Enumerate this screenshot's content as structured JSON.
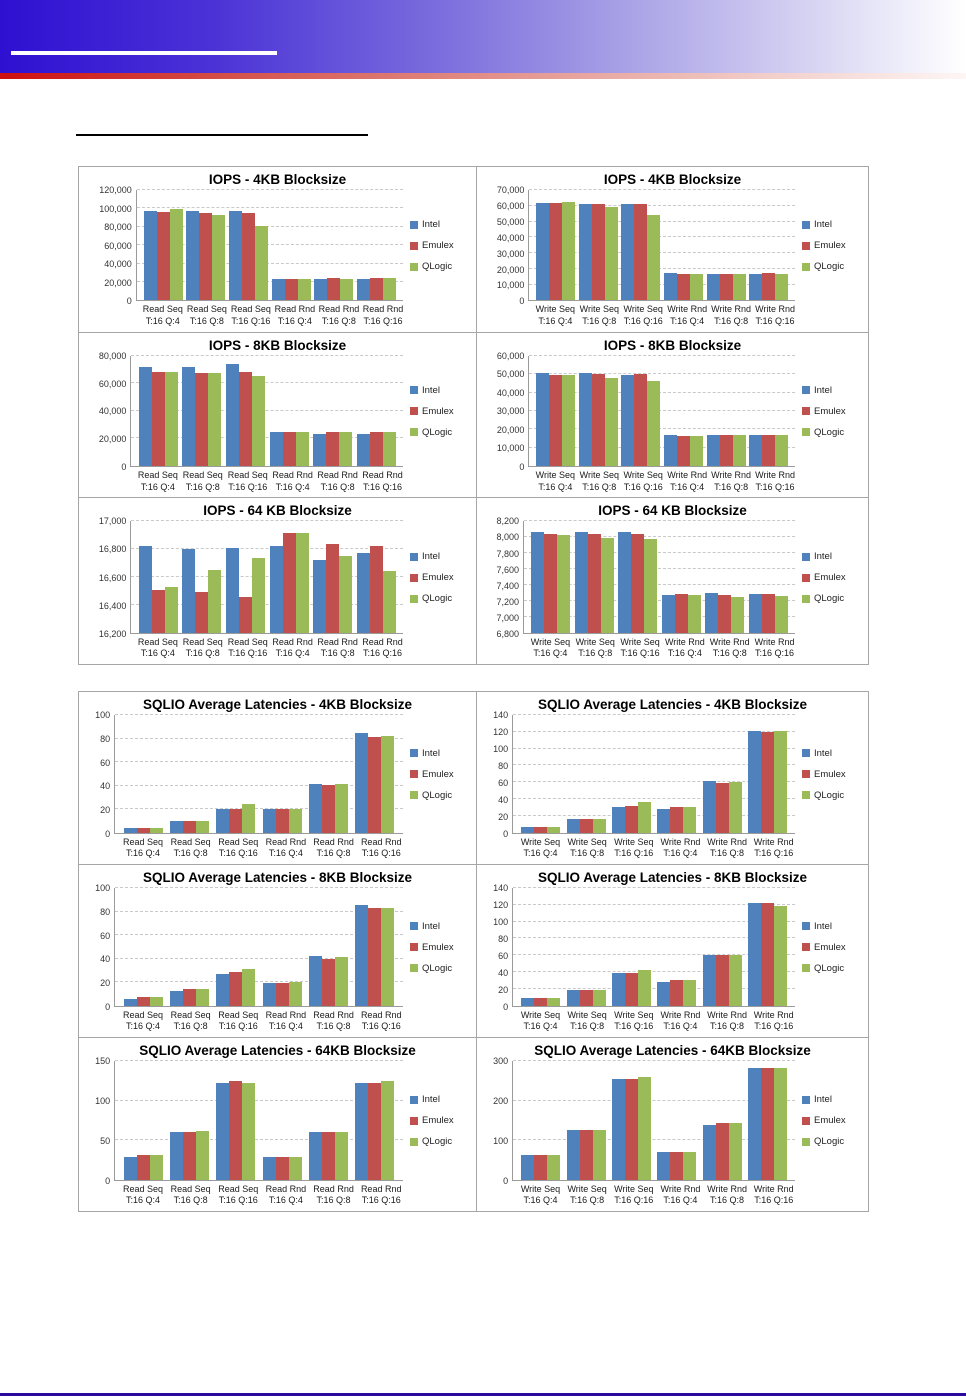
{
  "page": {
    "header": {
      "blue_band_color_left": "#2e10d2",
      "blue_band_color_right": "#ffffff",
      "red_band_color_left": "#cd0f0f",
      "red_band_color_right": "#fdf6f5"
    },
    "footer_line_color": "#2a0a9e"
  },
  "legend": {
    "items": [
      {
        "label": "Intel",
        "color": "#4F81BD"
      },
      {
        "label": "Emulex",
        "color": "#C0504D"
      },
      {
        "label": "QLogic",
        "color": "#9BBB59"
      }
    ],
    "position": "right"
  },
  "chart_data": [
    {
      "type": "bar",
      "title": "IOPS - 4KB Blocksize",
      "categories": [
        [
          "Read Seq",
          "T:16 Q:4"
        ],
        [
          "Read Seq",
          "T:16 Q:8"
        ],
        [
          "Read Seq",
          "T:16 Q:16"
        ],
        [
          "Read Rnd",
          "T:16 Q:4"
        ],
        [
          "Read Rnd",
          "T:16 Q:8"
        ],
        [
          "Read Rnd",
          "T:16 Q:16"
        ]
      ],
      "series": [
        {
          "name": "Intel",
          "color": "#4F81BD",
          "values": [
            97500,
            97500,
            97500,
            23500,
            23500,
            23500
          ]
        },
        {
          "name": "Emulex",
          "color": "#C0504D",
          "values": [
            96000,
            95500,
            95000,
            23000,
            24800,
            24800
          ]
        },
        {
          "name": "QLogic",
          "color": "#9BBB59",
          "values": [
            99000,
            93000,
            80500,
            23500,
            23700,
            24800
          ]
        }
      ],
      "ylim": [
        0,
        120000
      ],
      "ytick_labels": [
        "0",
        "20,000",
        "40,000",
        "60,000",
        "80,000",
        "100,000",
        "120,000"
      ],
      "grid": true,
      "legend_position": "right"
    },
    {
      "type": "bar",
      "title": "IOPS - 4KB Blocksize",
      "categories": [
        [
          "Write Seq",
          "T:16 Q:4"
        ],
        [
          "Write Seq",
          "T:16 Q:8"
        ],
        [
          "Write Seq",
          "T:16 Q:16"
        ],
        [
          "Write Rnd",
          "T:16 Q:4"
        ],
        [
          "Write Rnd",
          "T:16 Q:8"
        ],
        [
          "Write Rnd",
          "T:16 Q:16"
        ]
      ],
      "series": [
        {
          "name": "Intel",
          "color": "#4F81BD",
          "values": [
            62000,
            61300,
            61300,
            17200,
            16500,
            16500
          ]
        },
        {
          "name": "Emulex",
          "color": "#C0504D",
          "values": [
            62000,
            61000,
            61000,
            16500,
            16500,
            17200
          ]
        },
        {
          "name": "QLogic",
          "color": "#9BBB59",
          "values": [
            62200,
            59000,
            54000,
            16500,
            16600,
            16600
          ]
        }
      ],
      "ylim": [
        0,
        70000
      ],
      "ytick_labels": [
        "0",
        "10,000",
        "20,000",
        "30,000",
        "40,000",
        "50,000",
        "60,000",
        "70,000"
      ],
      "grid": true,
      "legend_position": "right"
    },
    {
      "type": "bar",
      "title": "IOPS - 8KB Blocksize",
      "categories": [
        [
          "Read Seq",
          "T:16 Q:4"
        ],
        [
          "Read Seq",
          "T:16 Q:8"
        ],
        [
          "Read Seq",
          "T:16 Q:16"
        ],
        [
          "Read Rnd",
          "T:16 Q:4"
        ],
        [
          "Read Rnd",
          "T:16 Q:8"
        ],
        [
          "Read Rnd",
          "T:16 Q:16"
        ]
      ],
      "series": [
        {
          "name": "Intel",
          "color": "#4F81BD",
          "values": [
            72000,
            72000,
            74000,
            24500,
            23500,
            23500
          ]
        },
        {
          "name": "Emulex",
          "color": "#C0504D",
          "values": [
            68000,
            67500,
            68000,
            24500,
            24500,
            24500
          ]
        },
        {
          "name": "QLogic",
          "color": "#9BBB59",
          "values": [
            68000,
            67500,
            65000,
            24500,
            24500,
            24500
          ]
        }
      ],
      "ylim": [
        0,
        80000
      ],
      "ytick_labels": [
        "0",
        "20,000",
        "40,000",
        "60,000",
        "80,000"
      ],
      "grid": true,
      "legend_position": "right"
    },
    {
      "type": "bar",
      "title": "IOPS - 8KB Blocksize",
      "categories": [
        [
          "Write Seq",
          "T:16 Q:4"
        ],
        [
          "Write Seq",
          "T:16 Q:8"
        ],
        [
          "Write Seq",
          "T:16 Q:16"
        ],
        [
          "Write Rnd",
          "T:16 Q:4"
        ],
        [
          "Write Rnd",
          "T:16 Q:8"
        ],
        [
          "Write Rnd",
          "T:16 Q:16"
        ]
      ],
      "series": [
        {
          "name": "Intel",
          "color": "#4F81BD",
          "values": [
            50500,
            50500,
            49800,
            17000,
            17000,
            17000
          ]
        },
        {
          "name": "Emulex",
          "color": "#C0504D",
          "values": [
            49800,
            50000,
            50000,
            16300,
            17000,
            17000
          ]
        },
        {
          "name": "QLogic",
          "color": "#9BBB59",
          "values": [
            49500,
            48000,
            46200,
            16300,
            17000,
            17000
          ]
        }
      ],
      "ylim": [
        0,
        60000
      ],
      "ytick_labels": [
        "0",
        "10,000",
        "20,000",
        "30,000",
        "40,000",
        "50,000",
        "60,000"
      ],
      "grid": true,
      "legend_position": "right"
    },
    {
      "type": "bar",
      "title": "IOPS - 64 KB Blocksize",
      "categories": [
        [
          "Read Seq",
          "T:16 Q:4"
        ],
        [
          "Read Seq",
          "T:16 Q:8"
        ],
        [
          "Read Seq",
          "T:16 Q:16"
        ],
        [
          "Read Rnd",
          "T:16 Q:4"
        ],
        [
          "Read Rnd",
          "T:16 Q:8"
        ],
        [
          "Read Rnd",
          "T:16 Q:16"
        ]
      ],
      "series": [
        {
          "name": "Intel",
          "color": "#4F81BD",
          "values": [
            16825,
            16800,
            16810,
            16825,
            16720,
            16775
          ]
        },
        {
          "name": "Emulex",
          "color": "#C0504D",
          "values": [
            16505,
            16490,
            16455,
            16915,
            16840,
            16820
          ]
        },
        {
          "name": "QLogic",
          "color": "#9BBB59",
          "values": [
            16525,
            16650,
            16740,
            16915,
            16755,
            16645
          ]
        }
      ],
      "ylim": [
        16200,
        17000
      ],
      "ytick_labels": [
        "16,200",
        "16,400",
        "16,600",
        "16,800",
        "17,000"
      ],
      "grid": true,
      "legend_position": "right"
    },
    {
      "type": "bar",
      "title": "IOPS - 64 KB Blocksize",
      "categories": [
        [
          "Write Seq",
          "T:16 Q:4"
        ],
        [
          "Write Seq",
          "T:16 Q:8"
        ],
        [
          "Write Seq",
          "T:16 Q:16"
        ],
        [
          "Write Rnd",
          "T:16 Q:4"
        ],
        [
          "Write Rnd",
          "T:16 Q:8"
        ],
        [
          "Write Rnd",
          "T:16 Q:16"
        ]
      ],
      "series": [
        {
          "name": "Intel",
          "color": "#4F81BD",
          "values": [
            8070,
            8070,
            8070,
            7275,
            7305,
            7290
          ]
        },
        {
          "name": "Emulex",
          "color": "#C0504D",
          "values": [
            8045,
            8045,
            8045,
            7290,
            7280,
            7290
          ]
        },
        {
          "name": "QLogic",
          "color": "#9BBB59",
          "values": [
            8035,
            7995,
            7985,
            7280,
            7245,
            7260
          ]
        }
      ],
      "ylim": [
        6800,
        8200
      ],
      "ytick_labels": [
        "6,800",
        "7,000",
        "7,200",
        "7,400",
        "7,600",
        "7,800",
        "8,000",
        "8,200"
      ],
      "grid": true,
      "legend_position": "right"
    },
    {
      "type": "bar",
      "title": "SQLIO Average Latencies - 4KB Blocksize",
      "categories": [
        [
          "Read Seq",
          "T:16 Q:4"
        ],
        [
          "Read Seq",
          "T:16 Q:8"
        ],
        [
          "Read Seq",
          "T:16 Q:16"
        ],
        [
          "Read Rnd",
          "T:16 Q:4"
        ],
        [
          "Read Rnd",
          "T:16 Q:8"
        ],
        [
          "Read Rnd",
          "T:16 Q:16"
        ]
      ],
      "series": [
        {
          "name": "Intel",
          "color": "#4F81BD",
          "values": [
            4,
            10,
            20,
            20,
            41.5,
            85
          ]
        },
        {
          "name": "Emulex",
          "color": "#C0504D",
          "values": [
            4,
            10,
            20.5,
            20,
            40.5,
            81
          ]
        },
        {
          "name": "QLogic",
          "color": "#9BBB59",
          "values": [
            4,
            10,
            24,
            20,
            41.5,
            82
          ]
        }
      ],
      "ylim": [
        0,
        100
      ],
      "ytick_labels": [
        "0",
        "20",
        "40",
        "60",
        "80",
        "100"
      ],
      "grid": true,
      "legend_position": "right"
    },
    {
      "type": "bar",
      "title": "SQLIO Average Latencies - 4KB Blocksize",
      "categories": [
        [
          "Write Seq",
          "T:16 Q:4"
        ],
        [
          "Write Seq",
          "T:16 Q:8"
        ],
        [
          "Write Seq",
          "T:16 Q:16"
        ],
        [
          "Write Rnd",
          "T:16 Q:4"
        ],
        [
          "Write Rnd",
          "T:16 Q:8"
        ],
        [
          "Write Rnd",
          "T:16 Q:16"
        ]
      ],
      "series": [
        {
          "name": "Intel",
          "color": "#4F81BD",
          "values": [
            7,
            16,
            31,
            28,
            61,
            121
          ]
        },
        {
          "name": "Emulex",
          "color": "#C0504D",
          "values": [
            7,
            16,
            32,
            30,
            59,
            120
          ]
        },
        {
          "name": "QLogic",
          "color": "#9BBB59",
          "values": [
            7,
            16,
            37,
            30,
            60,
            121
          ]
        }
      ],
      "ylim": [
        0,
        140
      ],
      "ytick_labels": [
        "0",
        "20",
        "40",
        "60",
        "80",
        "100",
        "120",
        "140"
      ],
      "grid": true,
      "legend_position": "right"
    },
    {
      "type": "bar",
      "title": "SQLIO Average Latencies - 8KB Blocksize",
      "categories": [
        [
          "Read Seq",
          "T:16 Q:4"
        ],
        [
          "Read Seq",
          "T:16 Q:8"
        ],
        [
          "Read Seq",
          "T:16 Q:16"
        ],
        [
          "Read Rnd",
          "T:16 Q:4"
        ],
        [
          "Read Rnd",
          "T:16 Q:8"
        ],
        [
          "Read Rnd",
          "T:16 Q:16"
        ]
      ],
      "series": [
        {
          "name": "Intel",
          "color": "#4F81BD",
          "values": [
            6,
            12.5,
            27,
            19.5,
            42,
            86
          ]
        },
        {
          "name": "Emulex",
          "color": "#C0504D",
          "values": [
            7.5,
            14,
            29,
            19.5,
            40,
            83
          ]
        },
        {
          "name": "QLogic",
          "color": "#9BBB59",
          "values": [
            7.5,
            14,
            31,
            20,
            41,
            83
          ]
        }
      ],
      "ylim": [
        0,
        100
      ],
      "ytick_labels": [
        "0",
        "20",
        "40",
        "60",
        "80",
        "100"
      ],
      "grid": true,
      "legend_position": "right"
    },
    {
      "type": "bar",
      "title": "SQLIO Average Latencies - 8KB Blocksize",
      "categories": [
        [
          "Write Seq",
          "T:16 Q:4"
        ],
        [
          "Write Seq",
          "T:16 Q:8"
        ],
        [
          "Write Seq",
          "T:16 Q:16"
        ],
        [
          "Write Rnd",
          "T:16 Q:4"
        ],
        [
          "Write Rnd",
          "T:16 Q:8"
        ],
        [
          "Write Rnd",
          "T:16 Q:16"
        ]
      ],
      "series": [
        {
          "name": "Intel",
          "color": "#4F81BD",
          "values": [
            9,
            19,
            39,
            28,
            60,
            122
          ]
        },
        {
          "name": "Emulex",
          "color": "#C0504D",
          "values": [
            9,
            19,
            39,
            30,
            60,
            122
          ]
        },
        {
          "name": "QLogic",
          "color": "#9BBB59",
          "values": [
            9,
            19,
            43,
            30,
            60,
            119
          ]
        }
      ],
      "ylim": [
        0,
        140
      ],
      "ytick_labels": [
        "0",
        "20",
        "40",
        "60",
        "80",
        "100",
        "120",
        "140"
      ],
      "grid": true,
      "legend_position": "right"
    },
    {
      "type": "bar",
      "title": "SQLIO Average Latencies - 64KB Blocksize",
      "categories": [
        [
          "Read Seq",
          "T:16 Q:4"
        ],
        [
          "Read Seq",
          "T:16 Q:8"
        ],
        [
          "Read Seq",
          "T:16 Q:16"
        ],
        [
          "Read Rnd",
          "T:16 Q:4"
        ],
        [
          "Read Rnd",
          "T:16 Q:8"
        ],
        [
          "Read Rnd",
          "T:16 Q:16"
        ]
      ],
      "series": [
        {
          "name": "Intel",
          "color": "#4F81BD",
          "values": [
            29,
            60,
            122,
            29,
            60,
            122
          ]
        },
        {
          "name": "Emulex",
          "color": "#C0504D",
          "values": [
            31,
            60,
            125,
            29,
            60,
            122
          ]
        },
        {
          "name": "QLogic",
          "color": "#9BBB59",
          "values": [
            31,
            61,
            122,
            29,
            60,
            125
          ]
        }
      ],
      "ylim": [
        0,
        150
      ],
      "ytick_labels": [
        "0",
        "50",
        "100",
        "150"
      ],
      "grid": true,
      "legend_position": "right"
    },
    {
      "type": "bar",
      "title": "SQLIO Average Latencies - 64KB Blocksize",
      "categories": [
        [
          "Write Seq",
          "T:16 Q:4"
        ],
        [
          "Write Seq",
          "T:16 Q:8"
        ],
        [
          "Write Seq",
          "T:16 Q:16"
        ],
        [
          "Write Rnd",
          "T:16 Q:4"
        ],
        [
          "Write Rnd",
          "T:16 Q:8"
        ],
        [
          "Write Rnd",
          "T:16 Q:16"
        ]
      ],
      "series": [
        {
          "name": "Intel",
          "color": "#4F81BD",
          "values": [
            63,
            126,
            255,
            71,
            138,
            283
          ]
        },
        {
          "name": "Emulex",
          "color": "#C0504D",
          "values": [
            63,
            126,
            255,
            71,
            143,
            283
          ]
        },
        {
          "name": "QLogic",
          "color": "#9BBB59",
          "values": [
            63,
            126,
            260,
            71,
            143,
            283
          ]
        }
      ],
      "ylim": [
        0,
        300
      ],
      "ytick_labels": [
        "0",
        "100",
        "200",
        "300"
      ],
      "grid": true,
      "legend_position": "right"
    }
  ]
}
